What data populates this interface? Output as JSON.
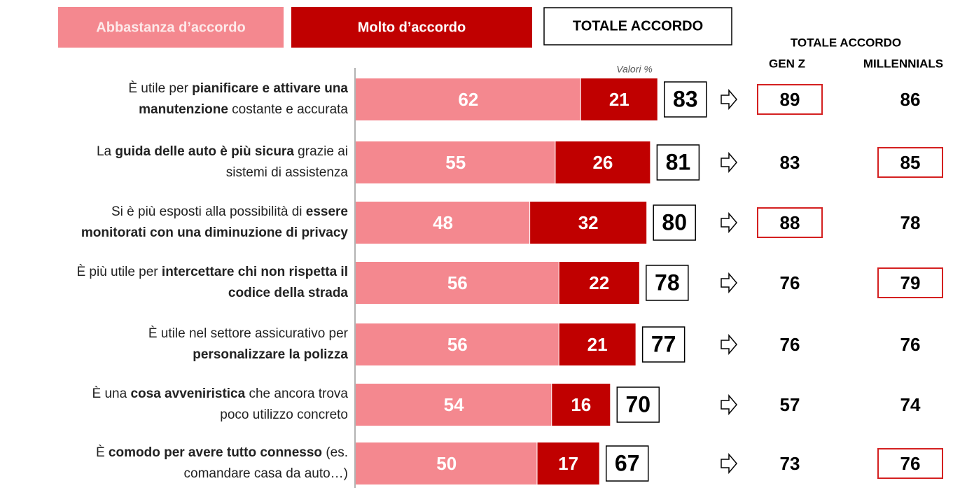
{
  "chart_data": {
    "type": "bar",
    "orientation": "horizontal",
    "stacked": true,
    "annotation": "Valori %",
    "xlim": [
      0,
      100
    ],
    "categories": [
      [
        [
          {
            "text": "È utile per ",
            "bold": false
          },
          {
            "text": "pianificare e attivare una",
            "bold": true
          }
        ],
        [
          {
            "text": "manutenzione",
            "bold": true
          },
          {
            "text": " costante e accurata",
            "bold": false
          }
        ]
      ],
      [
        [
          {
            "text": "La ",
            "bold": false
          },
          {
            "text": "guida delle auto è più sicura",
            "bold": true
          },
          {
            "text": " grazie ai",
            "bold": false
          }
        ],
        [
          {
            "text": "sistemi di assistenza",
            "bold": false
          }
        ]
      ],
      [
        [
          {
            "text": "Si è più esposti alla possibilità di ",
            "bold": false
          },
          {
            "text": "essere",
            "bold": true
          }
        ],
        [
          {
            "text": "monitorati con una diminuzione di privacy",
            "bold": true
          }
        ]
      ],
      [
        [
          {
            "text": "È più utile per ",
            "bold": false
          },
          {
            "text": "intercettare chi non rispetta il",
            "bold": true
          }
        ],
        [
          {
            "text": "codice della strada",
            "bold": true
          }
        ]
      ],
      [
        [
          {
            "text": "È utile nel settore assicurativo per",
            "bold": false
          }
        ],
        [
          {
            "text": "personalizzare la polizza",
            "bold": true
          }
        ]
      ],
      [
        [
          {
            "text": "È una ",
            "bold": false
          },
          {
            "text": "cosa avveniristica",
            "bold": true
          },
          {
            "text": " che ancora trova",
            "bold": false
          }
        ],
        [
          {
            "text": "poco utilizzo concreto",
            "bold": false
          }
        ]
      ],
      [
        [
          {
            "text": "È ",
            "bold": false
          },
          {
            "text": "comodo per avere tutto connesso",
            "bold": true
          },
          {
            "text": " (es.",
            "bold": false
          }
        ],
        [
          {
            "text": "comandare casa da auto…)",
            "bold": false
          }
        ]
      ]
    ],
    "series": [
      {
        "name": "Abbastanza d’accordo",
        "color": "#f4888f",
        "values": [
          62,
          55,
          48,
          56,
          56,
          54,
          50
        ]
      },
      {
        "name": "Molto d’accordo",
        "color": "#c00000",
        "values": [
          21,
          26,
          32,
          22,
          21,
          16,
          17
        ]
      }
    ],
    "totals": {
      "name": "TOTALE ACCORDO",
      "values": [
        83,
        81,
        80,
        78,
        77,
        70,
        67
      ]
    },
    "comparison": {
      "title": "TOTALE ACCORDO",
      "highlight_color": "#d42020",
      "columns": [
        {
          "name": "GEN Z",
          "values": [
            89,
            83,
            88,
            76,
            76,
            57,
            73
          ],
          "highlight": [
            true,
            false,
            true,
            false,
            false,
            false,
            false
          ]
        },
        {
          "name": "MILLENNIALS",
          "values": [
            86,
            85,
            78,
            79,
            76,
            74,
            76
          ],
          "highlight": [
            false,
            true,
            false,
            true,
            false,
            false,
            true
          ]
        }
      ]
    }
  }
}
